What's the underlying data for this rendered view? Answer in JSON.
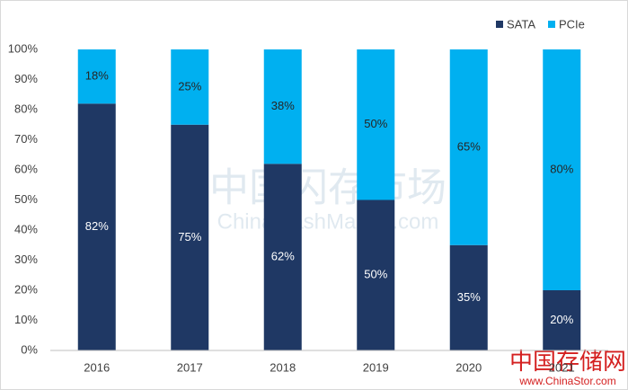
{
  "chart_data": {
    "type": "stacked_bar",
    "categories": [
      "2016",
      "2017",
      "2018",
      "2019",
      "2020",
      "2021"
    ],
    "series": [
      {
        "name": "SATA",
        "color": "#1f3864",
        "values": [
          82,
          75,
          62,
          50,
          35,
          20
        ],
        "value_labels": [
          "82%",
          "75%",
          "62%",
          "50%",
          "35%",
          "20%"
        ]
      },
      {
        "name": "PCIe",
        "color": "#00b0f0",
        "values": [
          18,
          25,
          38,
          50,
          65,
          80
        ],
        "value_labels": [
          "18%",
          "25%",
          "38%",
          "50%",
          "65%",
          "80%"
        ]
      }
    ],
    "ylim": [
      0,
      100
    ],
    "yticks": [
      {
        "value": 0,
        "label": "0%"
      },
      {
        "value": 10,
        "label": "10%"
      },
      {
        "value": 20,
        "label": "20%"
      },
      {
        "value": 30,
        "label": "30%"
      },
      {
        "value": 40,
        "label": "40%"
      },
      {
        "value": 50,
        "label": "50%"
      },
      {
        "value": 60,
        "label": "60%"
      },
      {
        "value": 70,
        "label": "70%"
      },
      {
        "value": 80,
        "label": "80%"
      },
      {
        "value": 90,
        "label": "90%"
      },
      {
        "value": 100,
        "label": "100%"
      }
    ],
    "grid": false,
    "legend": "top-right",
    "watermarks": [
      "中国闪存市场",
      "ChinaFlashMarket.com",
      "中国存储网",
      "www.ChinaStor.com"
    ]
  }
}
